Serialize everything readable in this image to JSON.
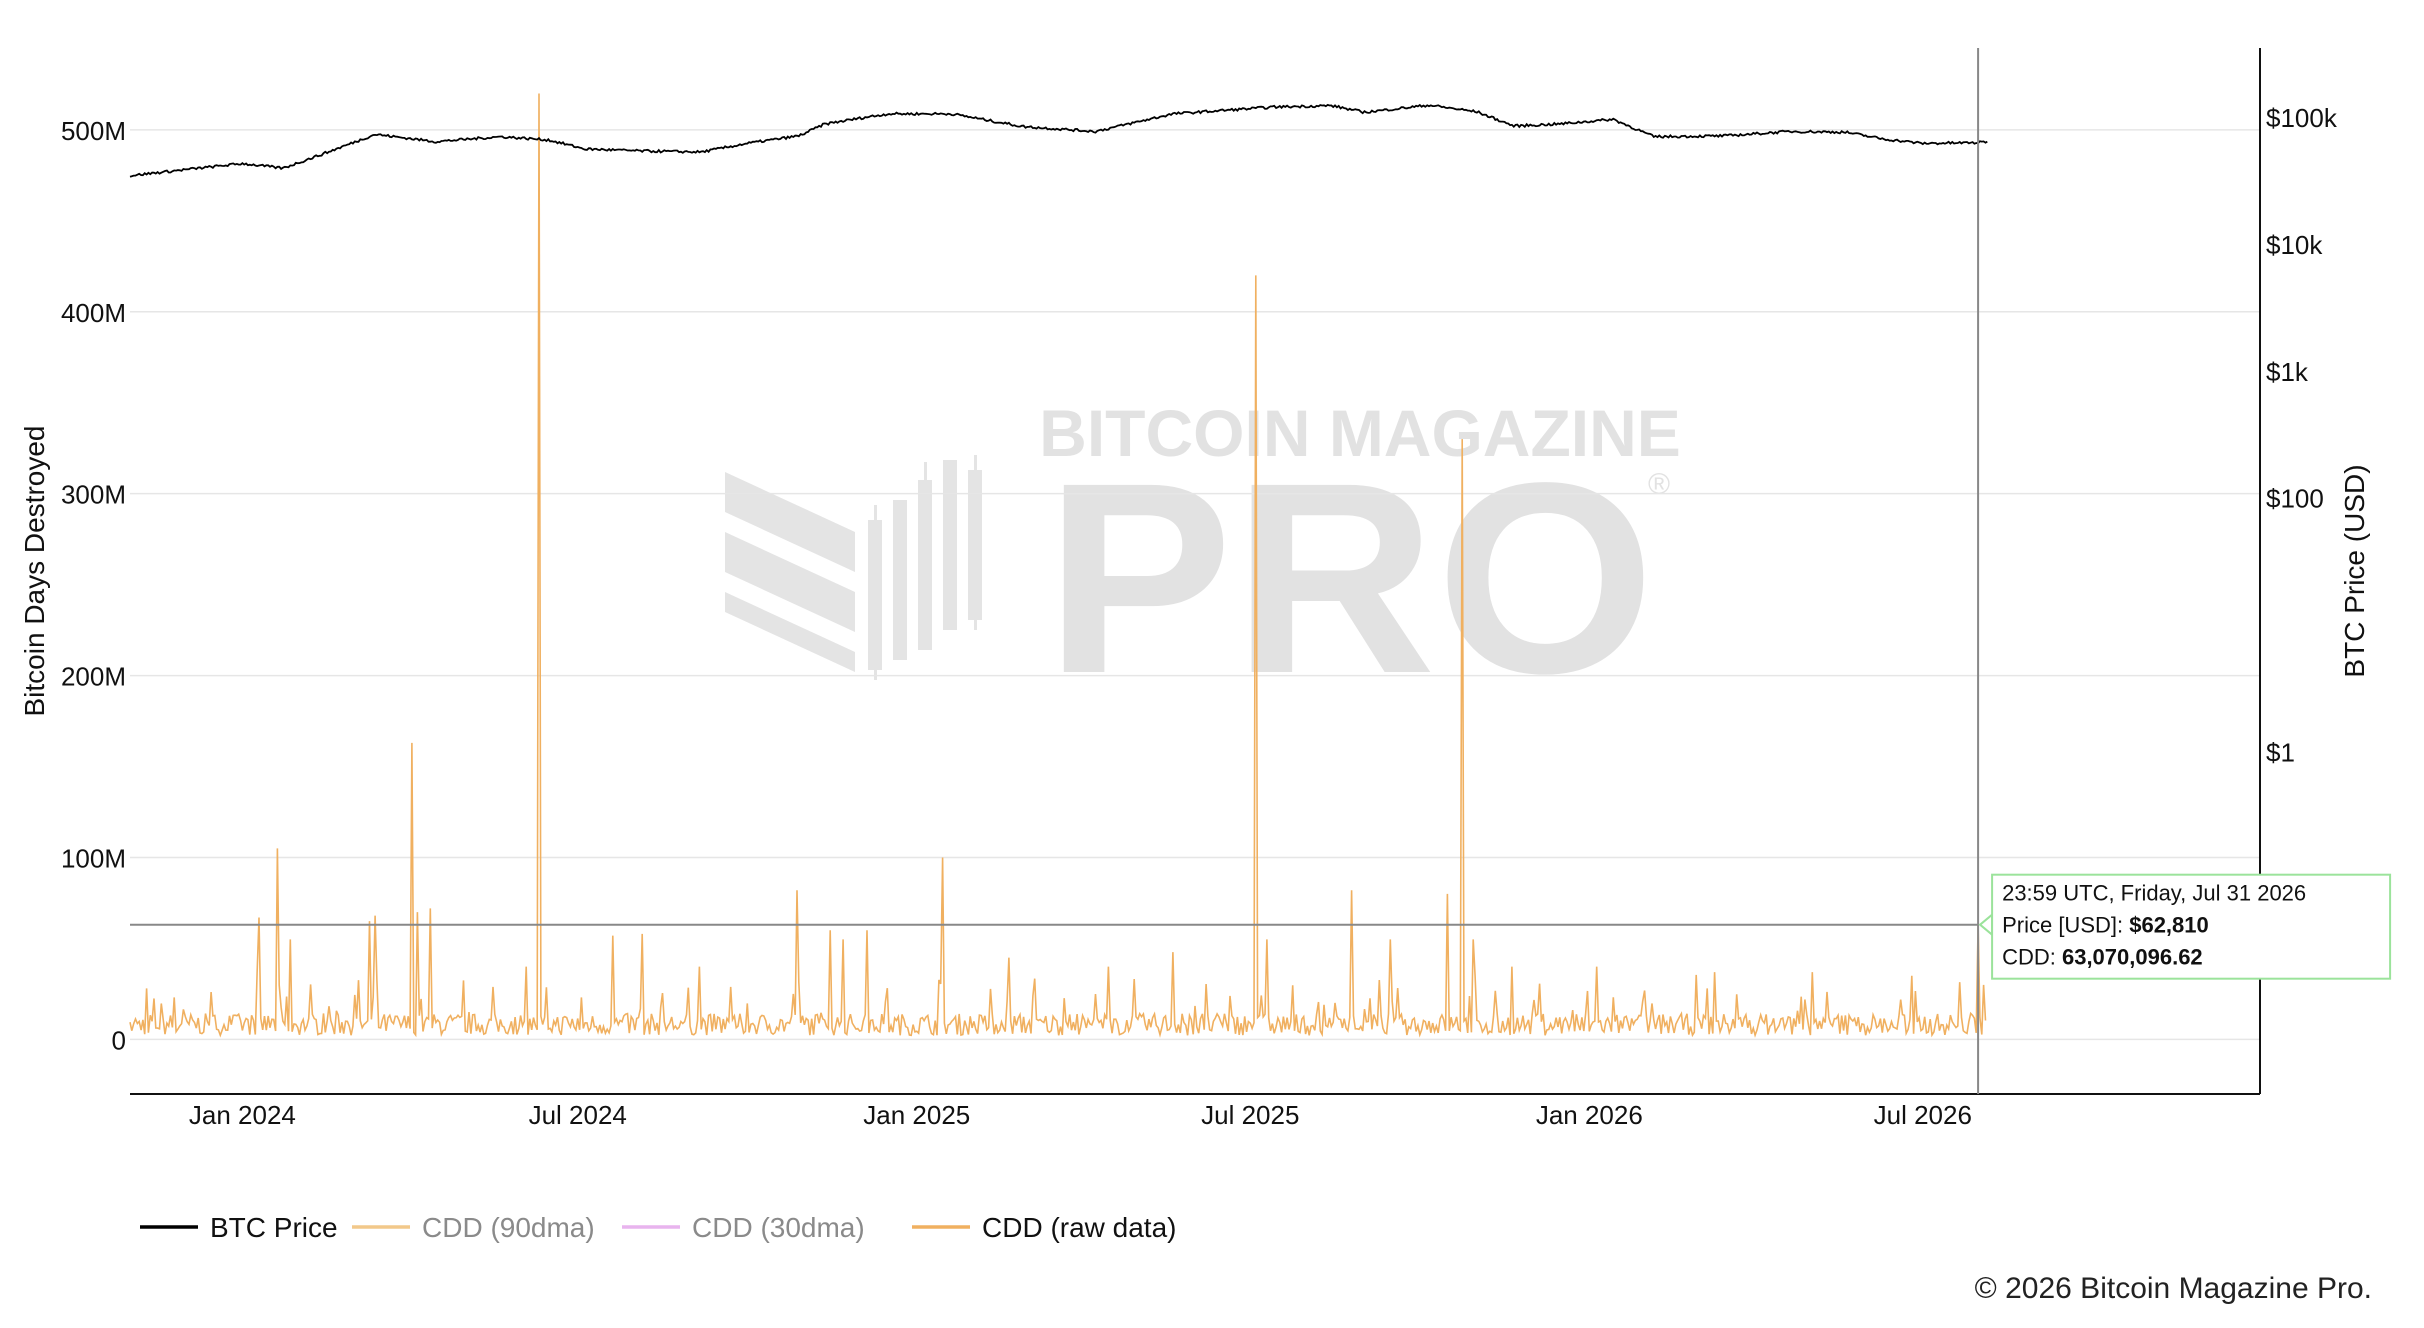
{
  "watermark": {
    "line1": "BITCOIN MAGAZINE",
    "line2": "PRO",
    "mark": "®"
  },
  "footer": "© 2026 Bitcoin Magazine Pro.",
  "tooltip": {
    "time": "23:59 UTC, Friday, Jul 31 2026",
    "price_label": "Price [USD]: ",
    "price_value": "$62,810",
    "cdd_label": "CDD: ",
    "cdd_value": "63,070,096.62",
    "border_color": "#9be39b"
  },
  "chart_data": {
    "type": "line",
    "x_range": [
      "2023-11-01",
      "2026-12-31"
    ],
    "x_ticks": [
      {
        "date": "2024-01-01",
        "label": "Jan 2024"
      },
      {
        "date": "2024-07-01",
        "label": "Jul 2024"
      },
      {
        "date": "2025-01-01",
        "label": "Jan 2025"
      },
      {
        "date": "2025-07-01",
        "label": "Jul 2025"
      },
      {
        "date": "2026-01-01",
        "label": "Jan 2026"
      },
      {
        "date": "2026-07-01",
        "label": "Jul 2026"
      }
    ],
    "y_left": {
      "label": "Bitcoin Days Destroyed",
      "range": [
        -30000000,
        545000000
      ],
      "ticks": [
        {
          "value": 0,
          "label": "0"
        },
        {
          "value": 100000000,
          "label": "100M"
        },
        {
          "value": 200000000,
          "label": "200M"
        },
        {
          "value": 300000000,
          "label": "300M"
        },
        {
          "value": 400000000,
          "label": "400M"
        },
        {
          "value": 500000000,
          "label": "500M"
        }
      ]
    },
    "y_right": {
      "label": "BTC Price (USD)",
      "scale": "log",
      "range": [
        0.002,
        350000
      ],
      "ticks": [
        {
          "value": 1,
          "label": "$1"
        },
        {
          "value": 100,
          "label": "$100"
        },
        {
          "value": 1000,
          "label": "$1k"
        },
        {
          "value": 10000,
          "label": "$10k"
        },
        {
          "value": 100000,
          "label": "$100k"
        }
      ]
    },
    "grid": true,
    "legend_position": "bottom-left",
    "hover_date": "2026-07-31",
    "hover_cdd": 63070096.62,
    "series": [
      {
        "name": "BTC Price",
        "color": "#000000",
        "axis": "right",
        "points": [
          [
            "2023-11-01",
            34500
          ],
          [
            "2023-12-01",
            38500
          ],
          [
            "2024-01-01",
            43000
          ],
          [
            "2024-01-23",
            39500
          ],
          [
            "2024-02-15",
            52000
          ],
          [
            "2024-03-13",
            73000
          ],
          [
            "2024-04-15",
            64000
          ],
          [
            "2024-05-20",
            70000
          ],
          [
            "2024-06-15",
            66000
          ],
          [
            "2024-07-05",
            56000
          ],
          [
            "2024-08-05",
            54000
          ],
          [
            "2024-09-06",
            53000
          ],
          [
            "2024-10-01",
            62000
          ],
          [
            "2024-10-29",
            71000
          ],
          [
            "2024-11-12",
            88000
          ],
          [
            "2024-12-05",
            100000
          ],
          [
            "2024-12-17",
            106000
          ],
          [
            "2025-01-20",
            106000
          ],
          [
            "2025-02-28",
            84000
          ],
          [
            "2025-04-08",
            77000
          ],
          [
            "2025-05-20",
            106000
          ],
          [
            "2025-07-14",
            120000
          ],
          [
            "2025-08-14",
            123000
          ],
          [
            "2025-09-01",
            109000
          ],
          [
            "2025-10-06",
            124000
          ],
          [
            "2025-11-01",
            110000
          ],
          [
            "2025-11-21",
            85000
          ],
          [
            "2025-12-15",
            88000
          ],
          [
            "2026-01-14",
            96000
          ],
          [
            "2026-02-05",
            70000
          ],
          [
            "2026-03-15",
            71000
          ],
          [
            "2026-04-20",
            77000
          ],
          [
            "2026-05-20",
            76000
          ],
          [
            "2026-06-10",
            67000
          ],
          [
            "2026-07-01",
            62000
          ],
          [
            "2026-07-31",
            62810
          ],
          [
            "2026-08-05",
            64000
          ]
        ]
      },
      {
        "name": "CDD (90dma)",
        "color": "#f2c88a",
        "axis": "left",
        "points": []
      },
      {
        "name": "CDD (30dma)",
        "color": "#e8b4ee",
        "axis": "left",
        "points": []
      },
      {
        "name": "CDD (raw data)",
        "color": "#f0b060",
        "axis": "left",
        "baseline": 9000000,
        "noise": 12000000,
        "spikes": [
          [
            "2024-01-20",
            105000000
          ],
          [
            "2024-01-10",
            67000000
          ],
          [
            "2024-01-27",
            55000000
          ],
          [
            "2024-03-10",
            65000000
          ],
          [
            "2024-03-13",
            68000000
          ],
          [
            "2024-04-02",
            163000000
          ],
          [
            "2024-04-05",
            70000000
          ],
          [
            "2024-04-12",
            72000000
          ],
          [
            "2024-06-10",
            520000000
          ],
          [
            "2024-06-03",
            40000000
          ],
          [
            "2024-07-20",
            57000000
          ],
          [
            "2024-08-05",
            58000000
          ],
          [
            "2024-09-05",
            40000000
          ],
          [
            "2024-10-28",
            82000000
          ],
          [
            "2024-11-15",
            60000000
          ],
          [
            "2024-11-22",
            55000000
          ],
          [
            "2024-12-05",
            60000000
          ],
          [
            "2025-01-15",
            100000000
          ],
          [
            "2025-02-20",
            45000000
          ],
          [
            "2025-04-15",
            40000000
          ],
          [
            "2025-05-20",
            48000000
          ],
          [
            "2025-07-04",
            420000000
          ],
          [
            "2025-07-10",
            55000000
          ],
          [
            "2025-08-25",
            82000000
          ],
          [
            "2025-09-15",
            55000000
          ],
          [
            "2025-10-16",
            80000000
          ],
          [
            "2025-10-24",
            330000000
          ],
          [
            "2025-10-30",
            55000000
          ],
          [
            "2025-11-20",
            40000000
          ],
          [
            "2026-01-05",
            40000000
          ],
          [
            "2026-03-10",
            37000000
          ],
          [
            "2026-05-02",
            37000000
          ],
          [
            "2026-06-25",
            35000000
          ],
          [
            "2026-07-31",
            63070096.62
          ],
          [
            "2026-08-03",
            30000000
          ]
        ]
      }
    ]
  }
}
